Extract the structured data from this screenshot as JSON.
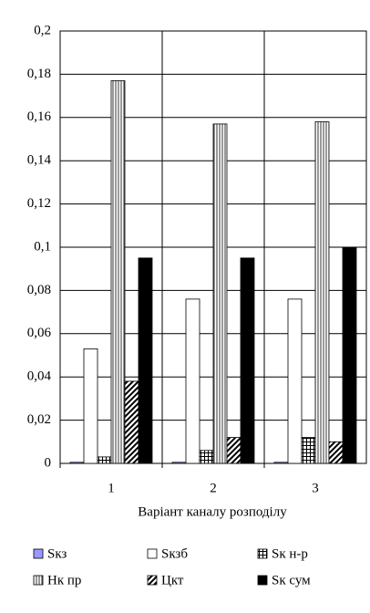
{
  "chart_data": {
    "type": "bar",
    "x_label": "Варіант каналу розподілу",
    "categories": [
      "1",
      "2",
      "3"
    ],
    "series": [
      {
        "name": "Sкз",
        "color": "#9999ff",
        "pattern": "solid",
        "values": [
          0.0005,
          0.0005,
          0.0005
        ]
      },
      {
        "name": "Sкзб",
        "color": "#ffffff",
        "pattern": "solid",
        "values": [
          0.053,
          0.076,
          0.076
        ]
      },
      {
        "name": "Sк н-р",
        "color": "#000000",
        "pattern": "grid",
        "values": [
          0.003,
          0.006,
          0.012
        ]
      },
      {
        "name": "Нк пр",
        "color": "#000000",
        "pattern": "vertical",
        "values": [
          0.177,
          0.157,
          0.158
        ]
      },
      {
        "name": "Цкт",
        "color": "#000000",
        "pattern": "diagonal",
        "values": [
          0.038,
          0.012,
          0.01
        ]
      },
      {
        "name": "Sк сум",
        "color": "#000000",
        "pattern": "solid",
        "values": [
          0.095,
          0.095,
          0.1
        ]
      }
    ],
    "ylim": [
      0,
      0.2
    ],
    "yticks": [
      0,
      {
        "value": 0.02,
        "label": "0,02"
      },
      {
        "value": 0.04,
        "label": "0,04"
      },
      {
        "value": 0.06,
        "label": "0,06"
      },
      {
        "value": 0.08,
        "label": "0,08"
      },
      {
        "value": 0.1,
        "label": "0,1"
      },
      {
        "value": 0.12,
        "label": "0,12"
      },
      {
        "value": 0.14,
        "label": "0,14"
      },
      {
        "value": 0.16,
        "label": "0,16"
      },
      {
        "value": 0.18,
        "label": "0,18"
      },
      {
        "value": 0.2,
        "label": "0,2"
      }
    ],
    "grid": true
  }
}
